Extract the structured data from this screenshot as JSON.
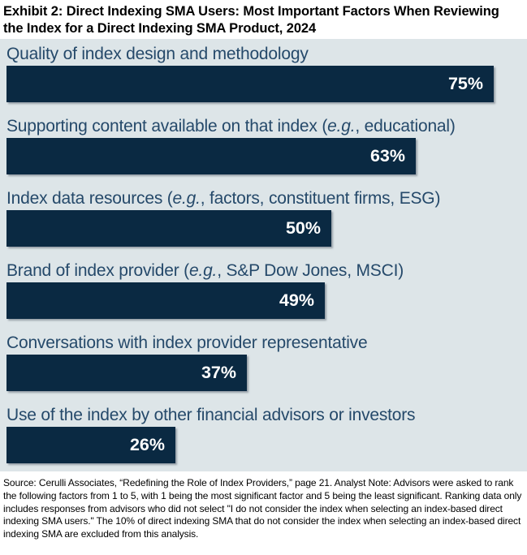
{
  "header": {
    "title": "Exhibit 2: Direct Indexing SMA Users: Most Important Factors When Reviewing the Index for a Direct Indexing SMA Product, 2024"
  },
  "chart_data": {
    "type": "bar",
    "orientation": "horizontal",
    "title": "Direct Indexing SMA Users: Most Important Factors When Reviewing the Index for a Direct Indexing SMA Product, 2024",
    "categories": [
      "Quality of index design and methodology",
      "Supporting content available on that index (e.g., educational)",
      "Index data resources (e.g., factors, constituent firms, ESG)",
      "Brand of index provider (e.g., S&P Dow Jones, MSCI)",
      "Conversations with index provider representative",
      "Use of the index by other financial advisors or investors"
    ],
    "values": [
      75,
      63,
      50,
      49,
      37,
      26
    ],
    "value_labels": [
      "75%",
      "63%",
      "50%",
      "49%",
      "37%",
      "26%"
    ],
    "bars": [
      {
        "pre": "Quality of index design and methodology",
        "italic": "",
        "post": "",
        "value": 75,
        "value_label": "75%"
      },
      {
        "pre": "Supporting content available on that index (",
        "italic": "e.g.",
        "post": ", educational)",
        "value": 63,
        "value_label": "63%"
      },
      {
        "pre": "Index data resources (",
        "italic": "e.g.",
        "post": ", factors, constituent firms, ESG)",
        "value": 50,
        "value_label": "50%"
      },
      {
        "pre": "Brand of index provider (",
        "italic": "e.g.",
        "post": ", S&P Dow Jones, MSCI)",
        "value": 49,
        "value_label": "49%"
      },
      {
        "pre": "Conversations with index provider representative",
        "italic": "",
        "post": "",
        "value": 37,
        "value_label": "37%"
      },
      {
        "pre": "Use of the index by other financial advisors or investors",
        "italic": "",
        "post": "",
        "value": 26,
        "value_label": "26%"
      }
    ],
    "xlim": [
      0,
      80
    ],
    "unit": "%",
    "grid": false,
    "legend": "none",
    "colors": {
      "bar": "#0a2942",
      "plot_bg": "#dde5e8",
      "category_label": "#25496a",
      "value_label": "#ffffff",
      "title": "#000000",
      "footnote": "#000000"
    }
  },
  "footer": {
    "text": "Source: Cerulli Associates, “Redefining the Role of Index Providers,” page 21. Analyst Note: Advisors were asked to rank the following factors from 1 to 5, with 1 being the most significant factor and 5 being the least significant. Ranking data only includes responses from advisors who did not select \"I do not consider the index when selecting an index-based direct indexing SMA users.\" The 10% of direct indexing SMA that do not consider the index when selecting an index-based direct indexing SMA are excluded from this analysis."
  }
}
